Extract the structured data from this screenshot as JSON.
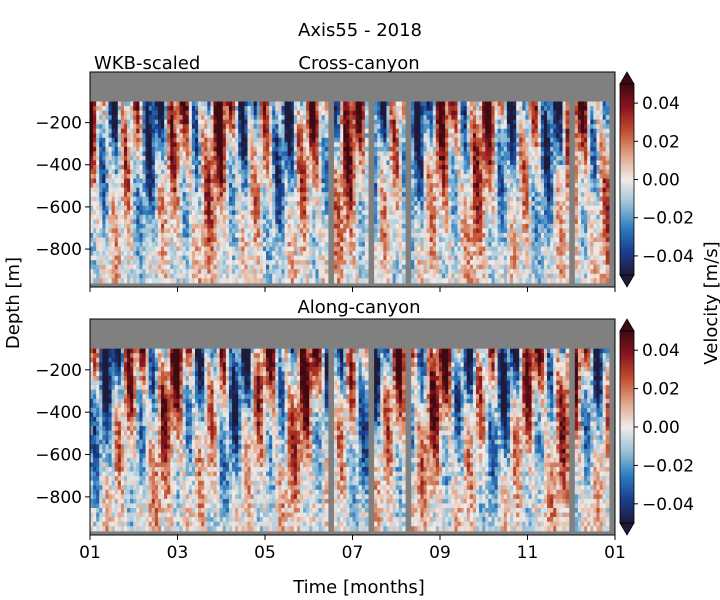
{
  "chart_data": {
    "type": "heatmap",
    "title": "Axis55 - 2018",
    "note_label": "WKB-scaled",
    "xlabel": "Time [months]",
    "ylabel": "Depth [m]",
    "x_tick_labels": [
      "01",
      "03",
      "05",
      "07",
      "09",
      "11",
      "01"
    ],
    "x_tick_months": [
      0,
      2,
      4,
      6,
      8,
      10,
      12
    ],
    "xlim_months": [
      0,
      12
    ],
    "ylim": [
      -980,
      40
    ],
    "y_ticks": [
      -200,
      -400,
      -600,
      -800
    ],
    "y_tick_labels": [
      "−200",
      "−400",
      "−600",
      "−800"
    ],
    "data_depth_range": [
      -960,
      -100
    ],
    "missing_intervals_months": [
      [
        5.45,
        5.5
      ],
      [
        5.52,
        5.58
      ],
      [
        6.35,
        6.5
      ],
      [
        6.55,
        6.6
      ],
      [
        7.18,
        7.32
      ],
      [
        10.92,
        11.1
      ],
      [
        11.85,
        12.0
      ]
    ],
    "colorbar": {
      "label": "Velocity [m/s]",
      "vmin": -0.05,
      "vmax": 0.05,
      "ticks": [
        0.04,
        0.02,
        0.0,
        -0.02,
        -0.04
      ],
      "tick_labels": [
        "0.04",
        "0.02",
        "0.00",
        "−0.02",
        "−0.04"
      ],
      "colormap": [
        "#1e1a3a",
        "#1b3f8f",
        "#2f7fbf",
        "#9cc3d8",
        "#f0ebe8",
        "#e0a58a",
        "#c2502e",
        "#8a1520",
        "#3f0a12"
      ],
      "extend": "both"
    },
    "panels": [
      {
        "title": "Cross-canyon",
        "component": "cross"
      },
      {
        "title": "Along-canyon",
        "component": "along"
      }
    ],
    "nan_color": "#808080"
  }
}
